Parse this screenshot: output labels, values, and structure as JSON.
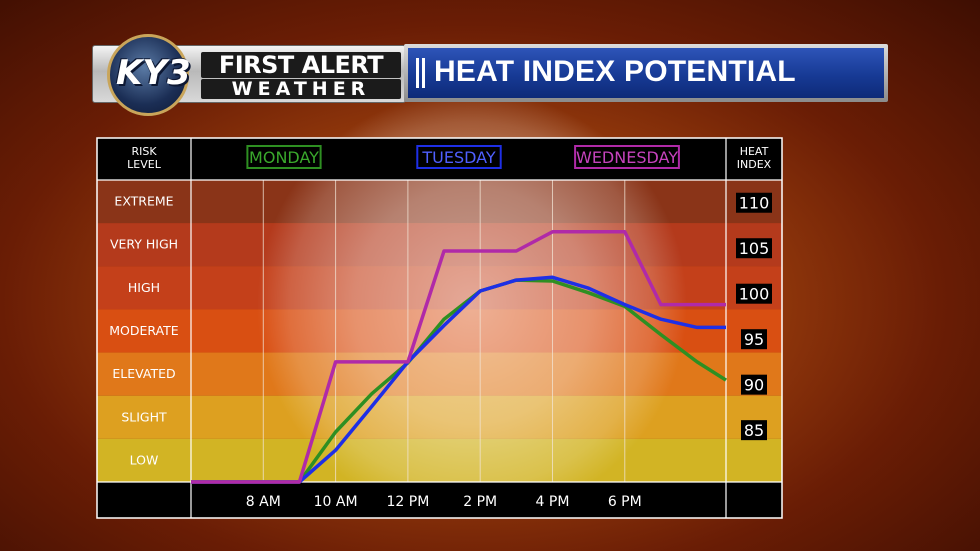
{
  "header": {
    "logo_text": "KY3",
    "logo_line1": "FIRST ALERT",
    "logo_line2": "WEATHER",
    "title": "HEAT INDEX POTENTIAL"
  },
  "chart_data": {
    "type": "line",
    "title": "HEAT INDEX POTENTIAL",
    "risk_header": "RISK LEVEL",
    "heat_header": "HEAT INDEX",
    "risk_levels": [
      {
        "name": "EXTREME",
        "color": "#8a3418"
      },
      {
        "name": "VERY HIGH",
        "color": "#b43a1c"
      },
      {
        "name": "HIGH",
        "color": "#c4401a"
      },
      {
        "name": "MODERATE",
        "color": "#d94f12"
      },
      {
        "name": "ELEVATED",
        "color": "#e0781a"
      },
      {
        "name": "SLIGHT",
        "color": "#dda020"
      },
      {
        "name": "LOW",
        "color": "#d2b424"
      }
    ],
    "x_ticks": [
      "8 AM",
      "10 AM",
      "12 PM",
      "2 PM",
      "4 PM",
      "6 PM"
    ],
    "x_tick_hours": [
      8,
      10,
      12,
      14,
      16,
      18
    ],
    "x_range": [
      6,
      20.8
    ],
    "y_ticks": [
      85,
      90,
      95,
      100,
      105,
      110
    ],
    "y_range": [
      79.3,
      112.5
    ],
    "series": [
      {
        "name": "MONDAY",
        "color": "#2e8f22",
        "points": [
          [
            6,
            79.3
          ],
          [
            9,
            79.3
          ],
          [
            10,
            84.8
          ],
          [
            11,
            89
          ],
          [
            12,
            92.4
          ],
          [
            13,
            97.2
          ],
          [
            14,
            100.3
          ],
          [
            15,
            101.5
          ],
          [
            16,
            101.4
          ],
          [
            17,
            100.1
          ],
          [
            18,
            98.6
          ],
          [
            19,
            95.5
          ],
          [
            20,
            92.5
          ],
          [
            20.8,
            90.5
          ]
        ]
      },
      {
        "name": "TUESDAY",
        "color": "#1e2fe6",
        "points": [
          [
            6,
            79.3
          ],
          [
            9,
            79.3
          ],
          [
            10,
            82.8
          ],
          [
            11,
            87.6
          ],
          [
            12,
            92.5
          ],
          [
            13,
            96.5
          ],
          [
            14,
            100.3
          ],
          [
            15,
            101.5
          ],
          [
            16,
            101.8
          ],
          [
            17,
            100.6
          ],
          [
            18,
            98.8
          ],
          [
            19,
            97.2
          ],
          [
            20,
            96.3
          ],
          [
            20.8,
            96.3
          ]
        ]
      },
      {
        "name": "WEDNESDAY",
        "color": "#b02aa8",
        "points": [
          [
            6,
            79.3
          ],
          [
            9,
            79.3
          ],
          [
            10,
            92.5
          ],
          [
            12,
            92.5
          ],
          [
            13,
            104.7
          ],
          [
            15,
            104.7
          ],
          [
            16,
            106.8
          ],
          [
            18,
            106.8
          ],
          [
            19,
            98.8
          ],
          [
            20.8,
            98.8
          ]
        ]
      }
    ]
  }
}
